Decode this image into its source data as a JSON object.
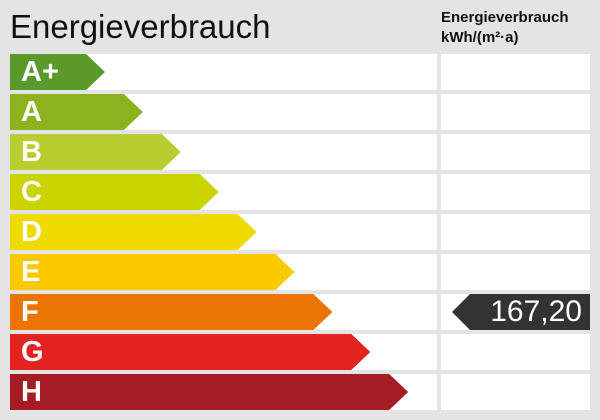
{
  "title": "Energieverbrauch",
  "value_header": {
    "line1": "Energieverbrauch",
    "line2": "kWh/(m²·a)"
  },
  "chart_data": {
    "type": "bar",
    "categories": [
      "A+",
      "A",
      "B",
      "C",
      "D",
      "E",
      "F",
      "G",
      "H"
    ],
    "colors": [
      "#5a9a2b",
      "#8bb21f",
      "#b9cd31",
      "#cbd300",
      "#f0db00",
      "#fbc900",
      "#ec7405",
      "#e2231f",
      "#a61c24"
    ],
    "current_class": "F",
    "current_value": "167,20",
    "marker_color": "#333333"
  }
}
